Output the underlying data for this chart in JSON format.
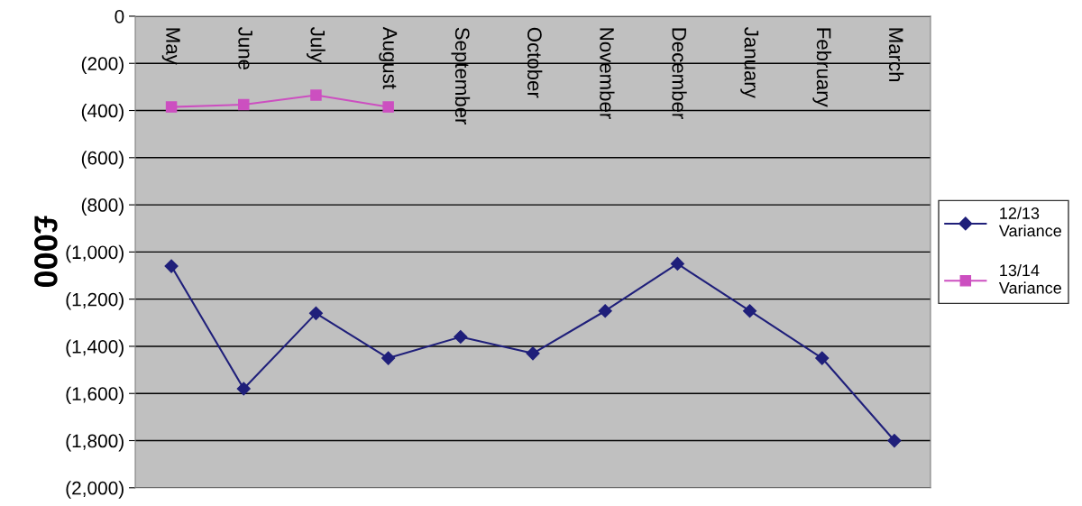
{
  "chart_data": {
    "type": "line",
    "categories": [
      "May",
      "June",
      "July",
      "August",
      "September",
      "October",
      "November",
      "December",
      "January",
      "February",
      "March"
    ],
    "ylabel": "£000",
    "series": [
      {
        "name": "12/13\nVariance",
        "color": "#1f1f7a",
        "marker": "diamond",
        "values": [
          -1060,
          -1580,
          -1260,
          -1450,
          -1360,
          -1430,
          -1250,
          -1050,
          -1250,
          -1450,
          -1800
        ]
      },
      {
        "name": "13/14\nVariance",
        "color": "#cc4fc0",
        "marker": "square",
        "values": [
          -385,
          -375,
          -335,
          -385,
          null,
          null,
          null,
          null,
          null,
          null,
          null
        ]
      }
    ],
    "ylim": [
      -2000,
      0
    ],
    "yticks": [
      {
        "value": -2000,
        "label": "(2,000)"
      },
      {
        "value": -1800,
        "label": "(1,800)"
      },
      {
        "value": -1600,
        "label": "(1,600)"
      },
      {
        "value": -1400,
        "label": "(1,400)"
      },
      {
        "value": -1200,
        "label": "(1,200)"
      },
      {
        "value": -1000,
        "label": "(1,000)"
      },
      {
        "value": -800,
        "label": "(800)"
      },
      {
        "value": -600,
        "label": "(600)"
      },
      {
        "value": -400,
        "label": "(400)"
      },
      {
        "value": -200,
        "label": "(200)"
      },
      0
    ],
    "grid": "y",
    "legend": "right",
    "line_style": "solid"
  }
}
